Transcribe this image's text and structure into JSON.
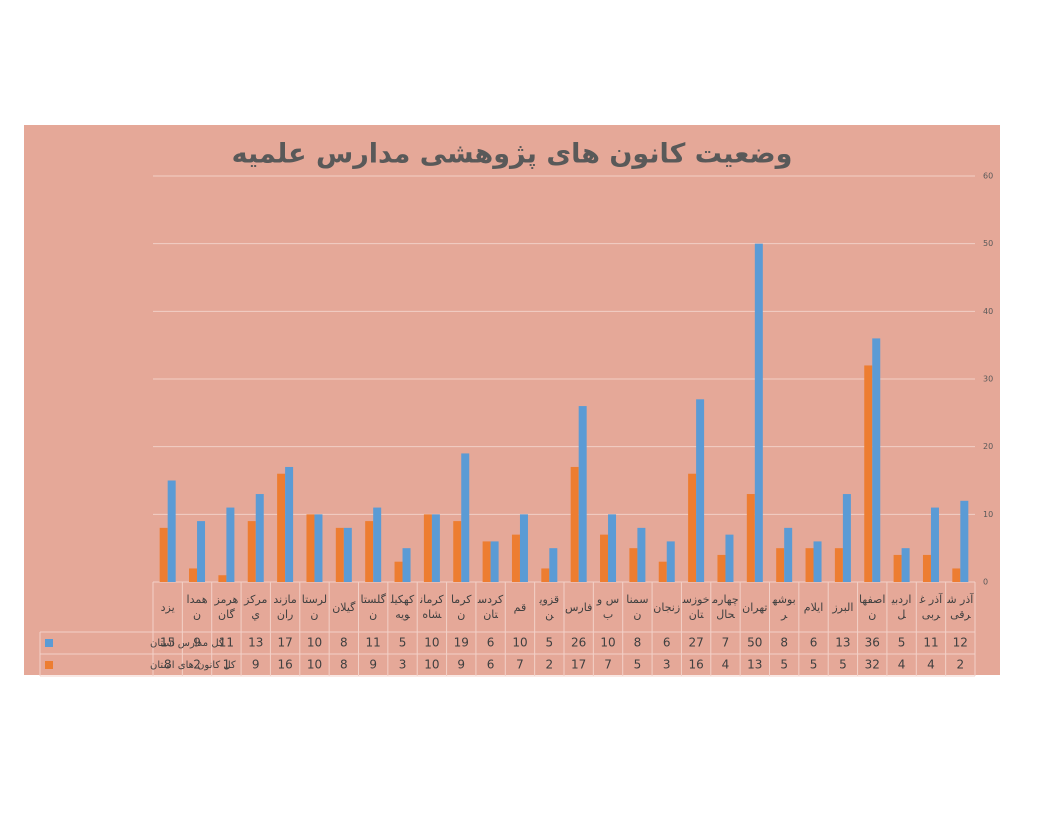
{
  "chart_data": {
    "type": "bar",
    "title": "وضعیت کانون های پژوهشی مدارس علمیه",
    "categories": [
      "يزد",
      "همدان",
      "هرمزگان",
      "مرکزي",
      "مازندران",
      "لرستان",
      "گيلان",
      "گلستان",
      "کهکيلويه",
      "کرمانشاه",
      "کرمان",
      "کردستان",
      "قم",
      "قزوين",
      "فارس",
      "س و ب",
      "سمنان",
      "زنجان",
      "خوزستان",
      "چهارمحال",
      "تهران",
      "بوشهر",
      "ايلام",
      "البرز",
      "اصفهان",
      "اردبيل",
      "آذر غربی",
      "آذر شرقی"
    ],
    "series": [
      {
        "name": "کل کانون های استان",
        "color": "#ed7d31",
        "values": [
          8,
          2,
          1,
          9,
          16,
          10,
          8,
          9,
          3,
          10,
          9,
          6,
          7,
          2,
          17,
          7,
          5,
          3,
          16,
          4,
          13,
          5,
          5,
          5,
          32,
          4,
          4,
          2
        ]
      },
      {
        "name": "کل مدارس استان",
        "color": "#5b9bd5",
        "values": [
          15,
          9,
          11,
          13,
          17,
          10,
          8,
          11,
          5,
          10,
          19,
          6,
          10,
          5,
          26,
          10,
          8,
          6,
          27,
          7,
          50,
          8,
          6,
          13,
          36,
          5,
          11,
          12
        ]
      }
    ],
    "ylim": [
      0,
      60
    ],
    "yticks": [
      0,
      10,
      20,
      30,
      40,
      50,
      60
    ],
    "grid": true,
    "data_table": true
  }
}
